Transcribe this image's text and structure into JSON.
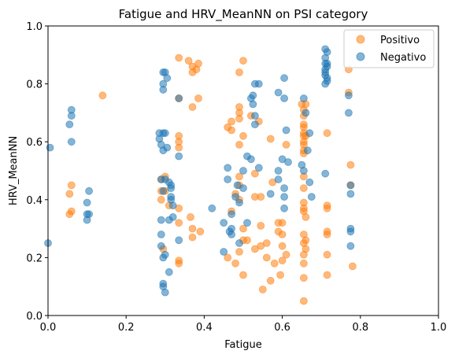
{
  "chart_data": {
    "type": "scatter",
    "title": "Fatigue and HRV_MeanNN on PSI category",
    "xlabel": "Fatigue",
    "ylabel": "HRV_MeanNN",
    "xlim": [
      0,
      1
    ],
    "ylim": [
      0,
      1
    ],
    "xticks": [
      "0.0",
      "0.2",
      "0.4",
      "0.6",
      "0.8",
      "1.0"
    ],
    "yticks": [
      "0.0",
      "0.2",
      "0.4",
      "0.6",
      "0.8",
      "1.0"
    ],
    "grid": false,
    "legend_position": "top-right",
    "series": [
      {
        "name": "Positivo",
        "color": "#ff7f0e",
        "points": [
          [
            0.06,
            0.45
          ],
          [
            0.06,
            0.36
          ],
          [
            0.055,
            0.35
          ],
          [
            0.055,
            0.42
          ],
          [
            0.14,
            0.76
          ],
          [
            0.29,
            0.47
          ],
          [
            0.29,
            0.43
          ],
          [
            0.29,
            0.4
          ],
          [
            0.295,
            0.23
          ],
          [
            0.3,
            0.48
          ],
          [
            0.3,
            0.43
          ],
          [
            0.31,
            0.38
          ],
          [
            0.335,
            0.89
          ],
          [
            0.335,
            0.75
          ],
          [
            0.335,
            0.62
          ],
          [
            0.335,
            0.6
          ],
          [
            0.335,
            0.58
          ],
          [
            0.335,
            0.37
          ],
          [
            0.335,
            0.32
          ],
          [
            0.335,
            0.19
          ],
          [
            0.335,
            0.18
          ],
          [
            0.36,
            0.88
          ],
          [
            0.365,
            0.34
          ],
          [
            0.37,
            0.86
          ],
          [
            0.37,
            0.84
          ],
          [
            0.37,
            0.72
          ],
          [
            0.37,
            0.3
          ],
          [
            0.37,
            0.27
          ],
          [
            0.38,
            0.85
          ],
          [
            0.385,
            0.87
          ],
          [
            0.385,
            0.75
          ],
          [
            0.39,
            0.29
          ],
          [
            0.46,
            0.65
          ],
          [
            0.46,
            0.2
          ],
          [
            0.47,
            0.67
          ],
          [
            0.47,
            0.64
          ],
          [
            0.47,
            0.36
          ],
          [
            0.48,
            0.42
          ],
          [
            0.48,
            0.18
          ],
          [
            0.49,
            0.84
          ],
          [
            0.49,
            0.72
          ],
          [
            0.49,
            0.7
          ],
          [
            0.49,
            0.68
          ],
          [
            0.49,
            0.59
          ],
          [
            0.49,
            0.48
          ],
          [
            0.49,
            0.45
          ],
          [
            0.49,
            0.4
          ],
          [
            0.49,
            0.22
          ],
          [
            0.5,
            0.88
          ],
          [
            0.5,
            0.62
          ],
          [
            0.5,
            0.3
          ],
          [
            0.5,
            0.26
          ],
          [
            0.5,
            0.14
          ],
          [
            0.51,
            0.26
          ],
          [
            0.52,
            0.69
          ],
          [
            0.53,
            0.49
          ],
          [
            0.53,
            0.41
          ],
          [
            0.53,
            0.23
          ],
          [
            0.54,
            0.67
          ],
          [
            0.545,
            0.41
          ],
          [
            0.545,
            0.31
          ],
          [
            0.545,
            0.24
          ],
          [
            0.55,
            0.09
          ],
          [
            0.56,
            0.25
          ],
          [
            0.56,
            0.2
          ],
          [
            0.57,
            0.61
          ],
          [
            0.57,
            0.12
          ],
          [
            0.575,
            0.46
          ],
          [
            0.58,
            0.18
          ],
          [
            0.59,
            0.32
          ],
          [
            0.59,
            0.29
          ],
          [
            0.595,
            0.14
          ],
          [
            0.6,
            0.32
          ],
          [
            0.6,
            0.28
          ],
          [
            0.6,
            0.24
          ],
          [
            0.6,
            0.19
          ],
          [
            0.61,
            0.59
          ],
          [
            0.61,
            0.21
          ],
          [
            0.65,
            0.73
          ],
          [
            0.655,
            0.71
          ],
          [
            0.655,
            0.69
          ],
          [
            0.655,
            0.66
          ],
          [
            0.655,
            0.65
          ],
          [
            0.655,
            0.63
          ],
          [
            0.655,
            0.62
          ],
          [
            0.655,
            0.6
          ],
          [
            0.655,
            0.59
          ],
          [
            0.655,
            0.57
          ],
          [
            0.655,
            0.56
          ],
          [
            0.655,
            0.48
          ],
          [
            0.655,
            0.44
          ],
          [
            0.655,
            0.39
          ],
          [
            0.655,
            0.37
          ],
          [
            0.655,
            0.36
          ],
          [
            0.655,
            0.28
          ],
          [
            0.655,
            0.25
          ],
          [
            0.655,
            0.21
          ],
          [
            0.655,
            0.18
          ],
          [
            0.655,
            0.13
          ],
          [
            0.655,
            0.05
          ],
          [
            0.66,
            0.73
          ],
          [
            0.66,
            0.62
          ],
          [
            0.66,
            0.34
          ],
          [
            0.66,
            0.26
          ],
          [
            0.66,
            0.23
          ],
          [
            0.715,
            0.63
          ],
          [
            0.715,
            0.38
          ],
          [
            0.715,
            0.37
          ],
          [
            0.715,
            0.29
          ],
          [
            0.715,
            0.28
          ],
          [
            0.715,
            0.21
          ],
          [
            0.715,
            0.14
          ],
          [
            0.77,
            0.85
          ],
          [
            0.77,
            0.77
          ],
          [
            0.775,
            0.52
          ],
          [
            0.775,
            0.45
          ],
          [
            0.78,
            0.17
          ]
        ]
      },
      {
        "name": "Negativo",
        "color": "#1f77b4",
        "points": [
          [
            0.0,
            0.25
          ],
          [
            0.005,
            0.58
          ],
          [
            0.055,
            0.66
          ],
          [
            0.06,
            0.71
          ],
          [
            0.06,
            0.69
          ],
          [
            0.06,
            0.6
          ],
          [
            0.1,
            0.39
          ],
          [
            0.1,
            0.35
          ],
          [
            0.1,
            0.33
          ],
          [
            0.105,
            0.43
          ],
          [
            0.105,
            0.35
          ],
          [
            0.285,
            0.63
          ],
          [
            0.285,
            0.61
          ],
          [
            0.29,
            0.59
          ],
          [
            0.29,
            0.47
          ],
          [
            0.29,
            0.33
          ],
          [
            0.29,
            0.28
          ],
          [
            0.29,
            0.24
          ],
          [
            0.295,
            0.84
          ],
          [
            0.295,
            0.8
          ],
          [
            0.295,
            0.78
          ],
          [
            0.295,
            0.63
          ],
          [
            0.295,
            0.57
          ],
          [
            0.295,
            0.43
          ],
          [
            0.295,
            0.2
          ],
          [
            0.295,
            0.11
          ],
          [
            0.295,
            0.1
          ],
          [
            0.3,
            0.84
          ],
          [
            0.3,
            0.63
          ],
          [
            0.3,
            0.47
          ],
          [
            0.3,
            0.21
          ],
          [
            0.3,
            0.08
          ],
          [
            0.305,
            0.82
          ],
          [
            0.305,
            0.58
          ],
          [
            0.31,
            0.46
          ],
          [
            0.31,
            0.33
          ],
          [
            0.31,
            0.15
          ],
          [
            0.315,
            0.45
          ],
          [
            0.315,
            0.44
          ],
          [
            0.315,
            0.41
          ],
          [
            0.315,
            0.4
          ],
          [
            0.32,
            0.38
          ],
          [
            0.32,
            0.34
          ],
          [
            0.335,
            0.75
          ],
          [
            0.335,
            0.55
          ],
          [
            0.335,
            0.26
          ],
          [
            0.42,
            0.37
          ],
          [
            0.45,
            0.32
          ],
          [
            0.45,
            0.22
          ],
          [
            0.46,
            0.51
          ],
          [
            0.46,
            0.47
          ],
          [
            0.465,
            0.29
          ],
          [
            0.47,
            0.35
          ],
          [
            0.47,
            0.3
          ],
          [
            0.47,
            0.28
          ],
          [
            0.48,
            0.41
          ],
          [
            0.485,
            0.45
          ],
          [
            0.49,
            0.39
          ],
          [
            0.49,
            0.25
          ],
          [
            0.5,
            0.5
          ],
          [
            0.5,
            0.44
          ],
          [
            0.51,
            0.55
          ],
          [
            0.51,
            0.32
          ],
          [
            0.52,
            0.75
          ],
          [
            0.52,
            0.54
          ],
          [
            0.525,
            0.76
          ],
          [
            0.525,
            0.73
          ],
          [
            0.53,
            0.8
          ],
          [
            0.53,
            0.69
          ],
          [
            0.53,
            0.66
          ],
          [
            0.54,
            0.51
          ],
          [
            0.54,
            0.8
          ],
          [
            0.57,
            0.42
          ],
          [
            0.59,
            0.77
          ],
          [
            0.59,
            0.5
          ],
          [
            0.59,
            0.47
          ],
          [
            0.6,
            0.54
          ],
          [
            0.605,
            0.82
          ],
          [
            0.605,
            0.75
          ],
          [
            0.605,
            0.44
          ],
          [
            0.605,
            0.41
          ],
          [
            0.605,
            0.37
          ],
          [
            0.61,
            0.64
          ],
          [
            0.615,
            0.53
          ],
          [
            0.65,
            0.52
          ],
          [
            0.655,
            0.75
          ],
          [
            0.655,
            0.5
          ],
          [
            0.66,
            0.7
          ],
          [
            0.665,
            0.57
          ],
          [
            0.67,
            0.63
          ],
          [
            0.67,
            0.46
          ],
          [
            0.675,
            0.41
          ],
          [
            0.71,
            0.92
          ],
          [
            0.71,
            0.89
          ],
          [
            0.71,
            0.87
          ],
          [
            0.71,
            0.85
          ],
          [
            0.71,
            0.84
          ],
          [
            0.71,
            0.83
          ],
          [
            0.71,
            0.8
          ],
          [
            0.71,
            0.49
          ],
          [
            0.715,
            0.91
          ],
          [
            0.715,
            0.87
          ],
          [
            0.715,
            0.86
          ],
          [
            0.715,
            0.82
          ],
          [
            0.715,
            0.81
          ],
          [
            0.77,
            0.76
          ],
          [
            0.77,
            0.7
          ],
          [
            0.775,
            0.45
          ],
          [
            0.775,
            0.42
          ],
          [
            0.775,
            0.3
          ],
          [
            0.775,
            0.29
          ],
          [
            0.775,
            0.24
          ]
        ]
      }
    ]
  }
}
